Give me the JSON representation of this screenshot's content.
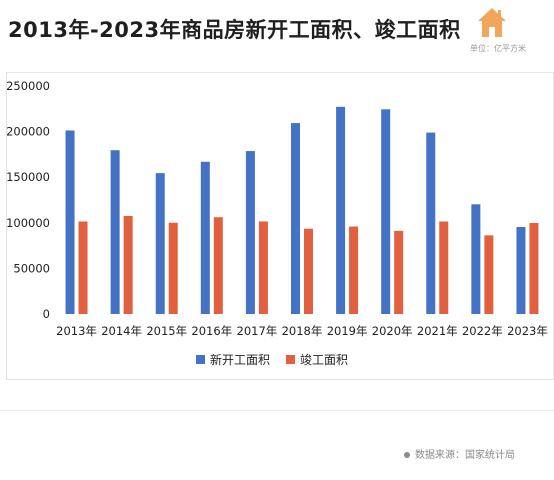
{
  "title": "2013年-2023年商品房新开工面积、竣工面积",
  "logo_icon": "house-icon",
  "unit_label": "单位：亿平方米",
  "source_label": "数据来源：国家统计局",
  "colors": {
    "new_construction": "#4472C4",
    "completion": "#E0603F",
    "axis_text": "#222222",
    "gridline": "#d9d9d9",
    "logo": "#F2A65A"
  },
  "chart_data": {
    "type": "bar",
    "categories": [
      "2013年",
      "2014年",
      "2015年",
      "2016年",
      "2017年",
      "2018年",
      "2019年",
      "2020年",
      "2021年",
      "2022年",
      "2023年"
    ],
    "series": [
      {
        "name": "新开工面积",
        "values": [
          201208,
          179592,
          154454,
          166928,
          178654,
          209342,
          227154,
          224433,
          198895,
          120262,
          95376
        ]
      },
      {
        "name": "竣工面积",
        "values": [
          101435,
          107459,
          100039,
          106128,
          101486,
          93550,
          95942,
          91218,
          101412,
          86222,
          99831
        ]
      }
    ],
    "yticks": [
      "0",
      "50000",
      "100000",
      "150000",
      "200000",
      "250000"
    ],
    "ylim": [
      0,
      250000
    ],
    "grid": false,
    "legend": "bottom"
  }
}
